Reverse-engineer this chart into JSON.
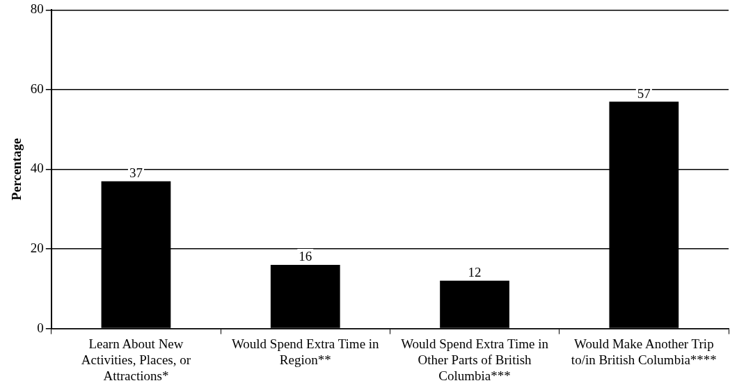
{
  "chart_data": {
    "type": "bar",
    "ylabel": "Percentage",
    "categories": [
      "Learn About New Activities, Places, or Attractions*",
      "Would Spend Extra Time in Region**",
      "Would Spend Extra Time in Other Parts of British Columbia***",
      "Would Make Another Trip to/in British Columbia****"
    ],
    "values": [
      37,
      16,
      12,
      57
    ],
    "color": "#000000",
    "ylim": [
      0,
      80
    ],
    "yticks": [
      0,
      20,
      40,
      60,
      80
    ],
    "grid": "y",
    "data_labels": true,
    "legend": false
  }
}
